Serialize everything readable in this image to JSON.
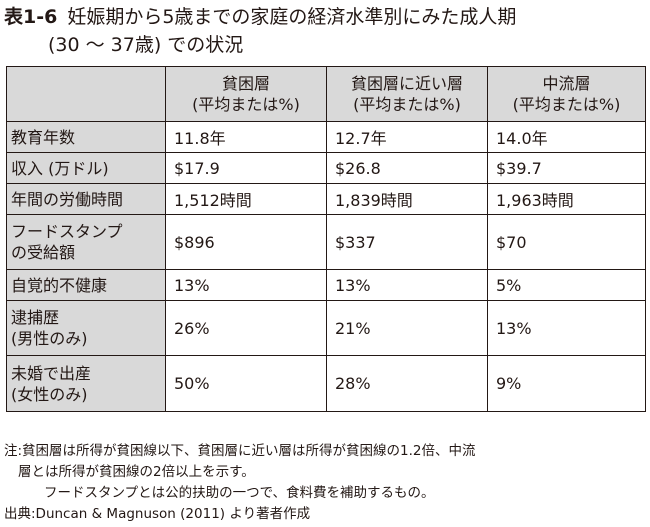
{
  "title": {
    "figure_no": "表1-6",
    "line1": "妊娠期から5歳までの家庭の経済水準別にみた成人期",
    "line2": "(30 ～ 37歳) での状況"
  },
  "table": {
    "headers": [
      {
        "line1": "",
        "line2": ""
      },
      {
        "line1": "貧困層",
        "line2": "(平均または%)"
      },
      {
        "line1": "貧困層に近い層",
        "line2": "(平均または%)"
      },
      {
        "line1": "中流層",
        "line2": "(平均または%)"
      }
    ],
    "rows": [
      {
        "label1": "教育年数",
        "label2": "",
        "values": [
          "11.8年",
          "12.7年",
          "14.0年"
        ]
      },
      {
        "label1": "収入 (万ドル)",
        "label2": "",
        "values": [
          "$17.9",
          "$26.8",
          "$39.7"
        ]
      },
      {
        "label1": "年間の労働時間",
        "label2": "",
        "values": [
          "1,512時間",
          "1,839時間",
          "1,963時間"
        ]
      },
      {
        "label1": "フードスタンプ",
        "label2": "の受給額",
        "values": [
          "$896",
          "$337",
          "$70"
        ]
      },
      {
        "label1": "自覚的不健康",
        "label2": "",
        "values": [
          "13%",
          "13%",
          "5%"
        ]
      },
      {
        "label1": "逮捕歴",
        "label2": "(男性のみ)",
        "values": [
          "26%",
          "21%",
          "13%"
        ]
      },
      {
        "label1": "未婚で出産",
        "label2": "(女性のみ)",
        "values": [
          "50%",
          "28%",
          "9%"
        ]
      }
    ]
  },
  "notes": {
    "line1": "注:貧困層は所得が貧困線以下、貧困層に近い層は所得が貧困線の1.2倍、中流",
    "line2": "層とは所得が貧困線の2倍以上を示す。",
    "line3": "フードスタンプとは公的扶助の一つで、食料費を補助するもの。",
    "source": "出典:Duncan & Magnuson (2011) より著者作成"
  }
}
